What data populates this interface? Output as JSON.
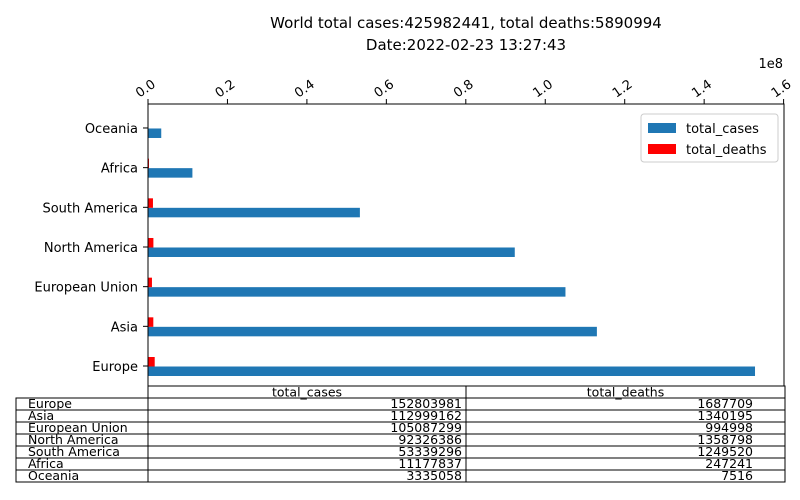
{
  "chart_data": {
    "type": "bar",
    "orientation": "horizontal",
    "title": "World total cases:425982441, total deaths:5890994",
    "subtitle": "Date:2022-02-23 13:27:43",
    "x_multiplier_label": "1e8",
    "xlim": [
      0,
      1.6
    ],
    "x_ticks": [
      "0.0",
      "0.2",
      "0.4",
      "0.6",
      "0.8",
      "1.0",
      "1.2",
      "1.4",
      "1.6"
    ],
    "categories": [
      "Europe",
      "Asia",
      "European Union",
      "North America",
      "South America",
      "Africa",
      "Oceania"
    ],
    "series": [
      {
        "name": "total_cases",
        "color": "#1f77b4",
        "values": [
          152803981,
          112999162,
          105087299,
          92326386,
          53339296,
          11177837,
          3335058
        ]
      },
      {
        "name": "total_deaths",
        "color": "#ff0000",
        "values": [
          1687709,
          1340195,
          994998,
          1358798,
          1249520,
          247241,
          7516
        ]
      }
    ],
    "legend_position": "top-right",
    "grid": false,
    "table": {
      "columns": [
        "total_cases",
        "total_deaths"
      ],
      "rows": [
        {
          "label": "Europe",
          "cells": [
            "152803981",
            "1687709"
          ]
        },
        {
          "label": "Asia",
          "cells": [
            "112999162",
            "1340195"
          ]
        },
        {
          "label": "European Union",
          "cells": [
            "105087299",
            "994998"
          ]
        },
        {
          "label": "North America",
          "cells": [
            "92326386",
            "1358798"
          ]
        },
        {
          "label": "South America",
          "cells": [
            "53339296",
            "1249520"
          ]
        },
        {
          "label": "Africa",
          "cells": [
            "11177837",
            "247241"
          ]
        },
        {
          "label": "Oceania",
          "cells": [
            "3335058",
            "7516"
          ]
        }
      ]
    }
  }
}
